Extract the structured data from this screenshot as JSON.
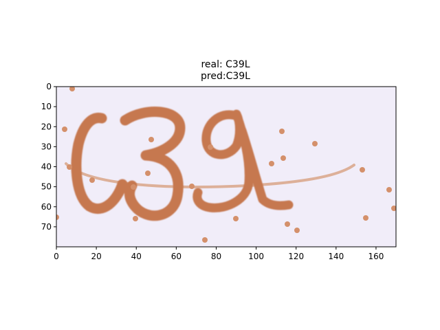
{
  "figure": {
    "title_line1": "real: C39L",
    "title_line2": "pred:C39L"
  },
  "axes": {
    "x_ticks": [
      0,
      20,
      40,
      60,
      80,
      100,
      120,
      140,
      160
    ],
    "y_ticks": [
      0,
      10,
      20,
      30,
      40,
      50,
      60,
      70
    ],
    "x_range": [
      0,
      170
    ],
    "y_range": [
      0,
      80
    ]
  },
  "image": {
    "background_color": "#f1edf9",
    "ink_color": "#c6784f",
    "noise_color": "#d4906b",
    "characters": [
      "C",
      "3",
      "9",
      "L"
    ]
  }
}
